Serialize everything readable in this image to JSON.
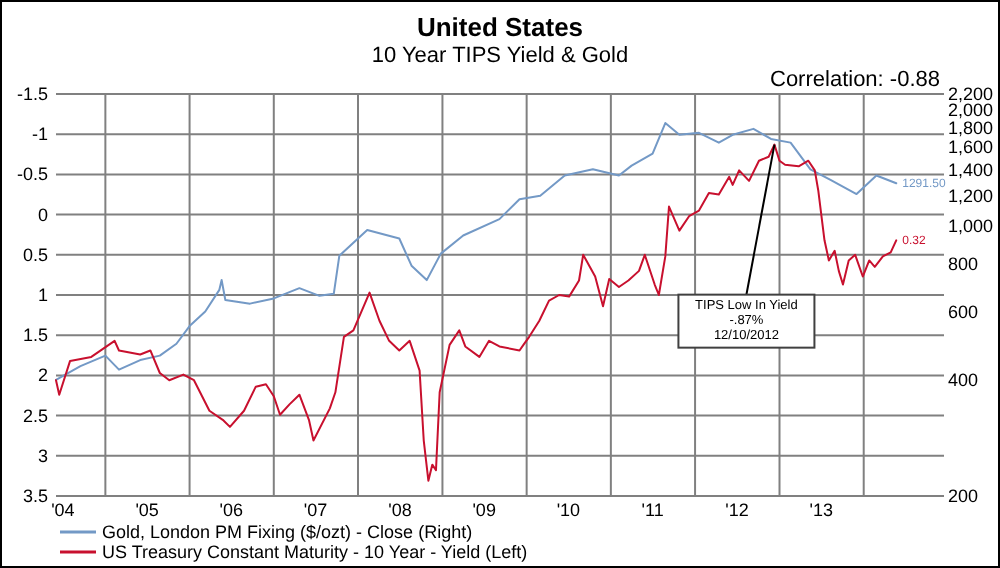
{
  "chart_data": {
    "type": "line",
    "title": "United States",
    "subtitle": "10 Year TIPS Yield & Gold",
    "annotations": [
      "Correlation: -0.88",
      {
        "text": "TIPS Low In Yield\n-.87%\n12/10/2012",
        "x": "2012-12-10",
        "y": -0.87
      }
    ],
    "xlim": [
      "2004-06-01",
      "2014-12-15"
    ],
    "xticks": [
      {
        "value": "2004-07-01",
        "label": "'04"
      },
      {
        "value": "2005-01-01",
        "label": null
      },
      {
        "value": "2005-07-01",
        "label": "'05"
      },
      {
        "value": "2006-01-01",
        "label": null
      },
      {
        "value": "2006-07-01",
        "label": "'06"
      },
      {
        "value": "2007-01-01",
        "label": null
      },
      {
        "value": "2007-07-01",
        "label": "'07"
      },
      {
        "value": "2008-01-01",
        "label": null
      },
      {
        "value": "2008-07-01",
        "label": "'08"
      },
      {
        "value": "2009-01-01",
        "label": null
      },
      {
        "value": "2009-07-01",
        "label": "'09"
      },
      {
        "value": "2010-01-01",
        "label": null
      },
      {
        "value": "2010-07-01",
        "label": "'10"
      },
      {
        "value": "2011-01-01",
        "label": null
      },
      {
        "value": "2011-07-01",
        "label": "'11"
      },
      {
        "value": "2012-01-01",
        "label": null
      },
      {
        "value": "2012-07-01",
        "label": "'12"
      },
      {
        "value": "2013-01-01",
        "label": null
      },
      {
        "value": "2013-07-01",
        "label": "'13"
      },
      {
        "value": "2014-01-01",
        "label": null
      }
    ],
    "ylim": [
      3.5,
      -1.5
    ],
    "yticks": [
      -1.5,
      -1,
      -0.5,
      0,
      0.5,
      1,
      1.5,
      2,
      2.5,
      3,
      3.5
    ],
    "y2lim": [
      200,
      2200
    ],
    "y2ticks": [
      200,
      400,
      600,
      800,
      {
        "value": 1000,
        "label": "1,000"
      },
      {
        "value": 1200,
        "label": "1,200"
      },
      {
        "value": 1400,
        "label": "1,400"
      },
      {
        "value": 1600,
        "label": "1,600"
      },
      {
        "value": 1800,
        "label": "1,800"
      },
      {
        "value": 2000,
        "label": "2,000"
      },
      {
        "value": 2200,
        "label": "2,200"
      }
    ],
    "log": "y2",
    "grid": true,
    "legend": "bottom",
    "series": [
      {
        "name": "Gold, London PM Fixing ($/ozt) - Close  (Right)",
        "color": "#7399c6",
        "axis": "y2",
        "x": [
          "2004-06-01",
          "2004-09-15",
          "2005-01-01",
          "2005-03-01",
          "2005-06-01",
          "2005-08-25",
          "2005-11-05",
          "2006-01-01",
          "2006-03-10",
          "2006-05-10",
          "2006-05-20",
          "2006-06-05",
          "2006-09-20",
          "2007-01-01",
          "2007-04-22",
          "2007-07-18",
          "2007-09-18",
          "2007-10-12",
          "2008-02-10",
          "2008-06-28",
          "2008-08-20",
          "2008-10-25",
          "2008-12-25",
          "2009-04-01",
          "2009-09-05",
          "2009-12-01",
          "2010-03-01",
          "2010-06-15",
          "2010-10-15",
          "2011-02-05",
          "2011-04-01",
          "2011-07-01",
          "2011-08-25",
          "2011-10-25",
          "2012-01-18",
          "2012-04-13",
          "2012-06-12",
          "2012-09-10",
          "2012-11-25",
          "2013-02-18",
          "2013-05-15",
          "2013-08-10",
          "2013-12-01",
          "2014-02-25",
          "2014-05-22"
        ],
        "values": [
          400,
          434,
          462,
          425,
          450,
          462,
          496,
          551,
          601,
          684,
          725,
          644,
          630,
          650,
          691,
          660,
          668,
          838,
          978,
          929,
          790,
          725,
          849,
          946,
          1043,
          1174,
          1199,
          1353,
          1404,
          1353,
          1435,
          1541,
          1850,
          1725,
          1745,
          1646,
          1725,
          1787,
          1683,
          1646,
          1404,
          1318,
          1211,
          1353,
          1291.5
        ],
        "value_labels": [
          null,
          null,
          null,
          null,
          null,
          null,
          null,
          null,
          null,
          null,
          null,
          null,
          null,
          null,
          null,
          null,
          null,
          null,
          null,
          null,
          null,
          null,
          null,
          null,
          null,
          null,
          null,
          null,
          null,
          null,
          null,
          null,
          null,
          null,
          null,
          null,
          null,
          null,
          null,
          null,
          null,
          null,
          null,
          null,
          "1291.50"
        ]
      },
      {
        "name": "US Treasury Constant Maturity - 10 Year - Yield (Left)",
        "color": "#c8102e",
        "x": [
          "2004-06-01",
          "2004-06-15",
          "2004-08-01",
          "2004-11-01",
          "2005-02-10",
          "2005-03-01",
          "2005-06-01",
          "2005-07-15",
          "2005-08-25",
          "2005-10-05",
          "2005-12-05",
          "2006-01-20",
          "2006-03-28",
          "2006-05-28",
          "2006-06-25",
          "2006-08-25",
          "2006-10-15",
          "2006-11-28",
          "2007-01-01",
          "2007-01-28",
          "2007-03-10",
          "2007-04-22",
          "2007-06-03",
          "2007-06-22",
          "2007-09-01",
          "2007-09-25",
          "2007-11-01",
          "2007-12-12",
          "2008-02-20",
          "2008-04-03",
          "2008-05-15",
          "2008-06-28",
          "2008-08-12",
          "2008-09-24",
          "2008-10-12",
          "2008-11-01",
          "2008-11-18",
          "2008-12-04",
          "2008-12-20",
          "2009-02-01",
          "2009-03-15",
          "2009-04-10",
          "2009-06-10",
          "2009-07-22",
          "2009-09-05",
          "2009-12-01",
          "2009-12-18",
          "2010-01-12",
          "2010-02-25",
          "2010-04-08",
          "2010-05-22",
          "2010-07-04",
          "2010-08-16",
          "2010-09-03",
          "2010-10-25",
          "2010-11-28",
          "2010-12-25",
          "2011-02-05",
          "2011-03-18",
          "2011-05-03",
          "2011-05-28",
          "2011-07-10",
          "2011-07-28",
          "2011-08-25",
          "2011-09-10",
          "2011-10-25",
          "2011-12-06",
          "2012-01-18",
          "2012-03-01",
          "2012-04-13",
          "2012-05-28",
          "2012-06-12",
          "2012-07-10",
          "2012-08-22",
          "2012-10-04",
          "2012-11-15",
          "2012-12-10",
          "2013-01-01",
          "2013-01-25",
          "2013-03-25",
          "2013-05-06",
          "2013-06-03",
          "2013-06-18",
          "2013-07-15",
          "2013-08-03",
          "2013-08-28",
          "2013-09-15",
          "2013-10-03",
          "2013-10-28",
          "2013-11-25",
          "2013-12-28",
          "2014-01-25",
          "2014-02-18",
          "2014-03-25",
          "2014-04-28",
          "2014-05-22"
        ],
        "values": [
          2.06,
          2.24,
          1.82,
          1.77,
          1.57,
          1.69,
          1.74,
          1.69,
          1.97,
          2.06,
          1.99,
          2.06,
          2.44,
          2.56,
          2.64,
          2.44,
          2.14,
          2.11,
          2.26,
          2.49,
          2.36,
          2.24,
          2.56,
          2.81,
          2.41,
          2.21,
          1.52,
          1.44,
          0.97,
          1.32,
          1.57,
          1.69,
          1.57,
          1.94,
          2.81,
          3.31,
          3.11,
          3.18,
          2.21,
          1.62,
          1.44,
          1.64,
          1.77,
          1.57,
          1.64,
          1.69,
          1.62,
          1.52,
          1.32,
          1.07,
          1.0,
          1.02,
          0.82,
          0.5,
          0.77,
          1.14,
          0.8,
          0.9,
          0.82,
          0.7,
          0.5,
          0.87,
          1.0,
          0.52,
          -0.1,
          0.2,
          0.02,
          -0.05,
          -0.27,
          -0.25,
          -0.47,
          -0.37,
          -0.55,
          -0.42,
          -0.67,
          -0.72,
          -0.87,
          -0.67,
          -0.62,
          -0.6,
          -0.67,
          -0.55,
          -0.3,
          0.32,
          0.57,
          0.45,
          0.7,
          0.87,
          0.57,
          0.5,
          0.77,
          0.57,
          0.65,
          0.52,
          0.47,
          0.32
        ],
        "value_labels": [
          null,
          null,
          null,
          null,
          null,
          null,
          null,
          null,
          null,
          null,
          null,
          null,
          null,
          null,
          null,
          null,
          null,
          null,
          null,
          null,
          null,
          null,
          null,
          null,
          null,
          null,
          null,
          null,
          null,
          null,
          null,
          null,
          null,
          null,
          null,
          null,
          null,
          null,
          null,
          null,
          null,
          null,
          null,
          null,
          null,
          null,
          null,
          null,
          null,
          null,
          null,
          null,
          null,
          null,
          null,
          null,
          null,
          null,
          null,
          null,
          null,
          null,
          null,
          null,
          null,
          null,
          null,
          null,
          null,
          null,
          null,
          null,
          null,
          null,
          null,
          null,
          null,
          null,
          null,
          null,
          null,
          null,
          null,
          null,
          null,
          null,
          null,
          null,
          null,
          null,
          null,
          null,
          null,
          null,
          null,
          "0.32"
        ]
      }
    ]
  }
}
